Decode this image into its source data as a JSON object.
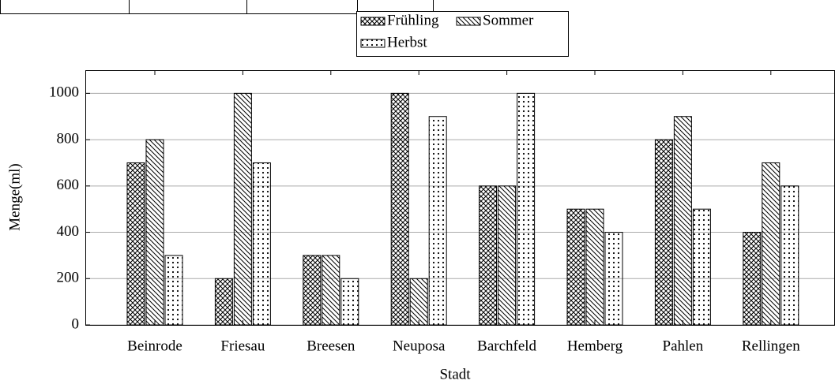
{
  "chart_data": {
    "type": "bar",
    "categories": [
      "Beinrode",
      "Friesau",
      "Breesen",
      "Neuposa",
      "Barchfeld",
      "Hemberg",
      "Pahlen",
      "Rellingen"
    ],
    "series": [
      {
        "name": "Frühling",
        "color": "#000000",
        "pattern": "crosshatch",
        "values": [
          700,
          200,
          300,
          1000,
          600,
          500,
          800,
          400
        ]
      },
      {
        "name": "Sommer",
        "color": "#000000",
        "pattern": "north-west-lines",
        "values": [
          800,
          1000,
          300,
          200,
          600,
          500,
          900,
          700
        ]
      },
      {
        "name": "Herbst",
        "color": "#000000",
        "pattern": "dots",
        "values": [
          300,
          700,
          200,
          900,
          1000,
          400,
          500,
          600
        ]
      }
    ],
    "xlabel": "Stadt",
    "ylabel": "Menge(ml)",
    "ylim": [
      0,
      1100
    ],
    "yticks": [
      0,
      200,
      400,
      600,
      800,
      1000
    ],
    "grid": true
  }
}
